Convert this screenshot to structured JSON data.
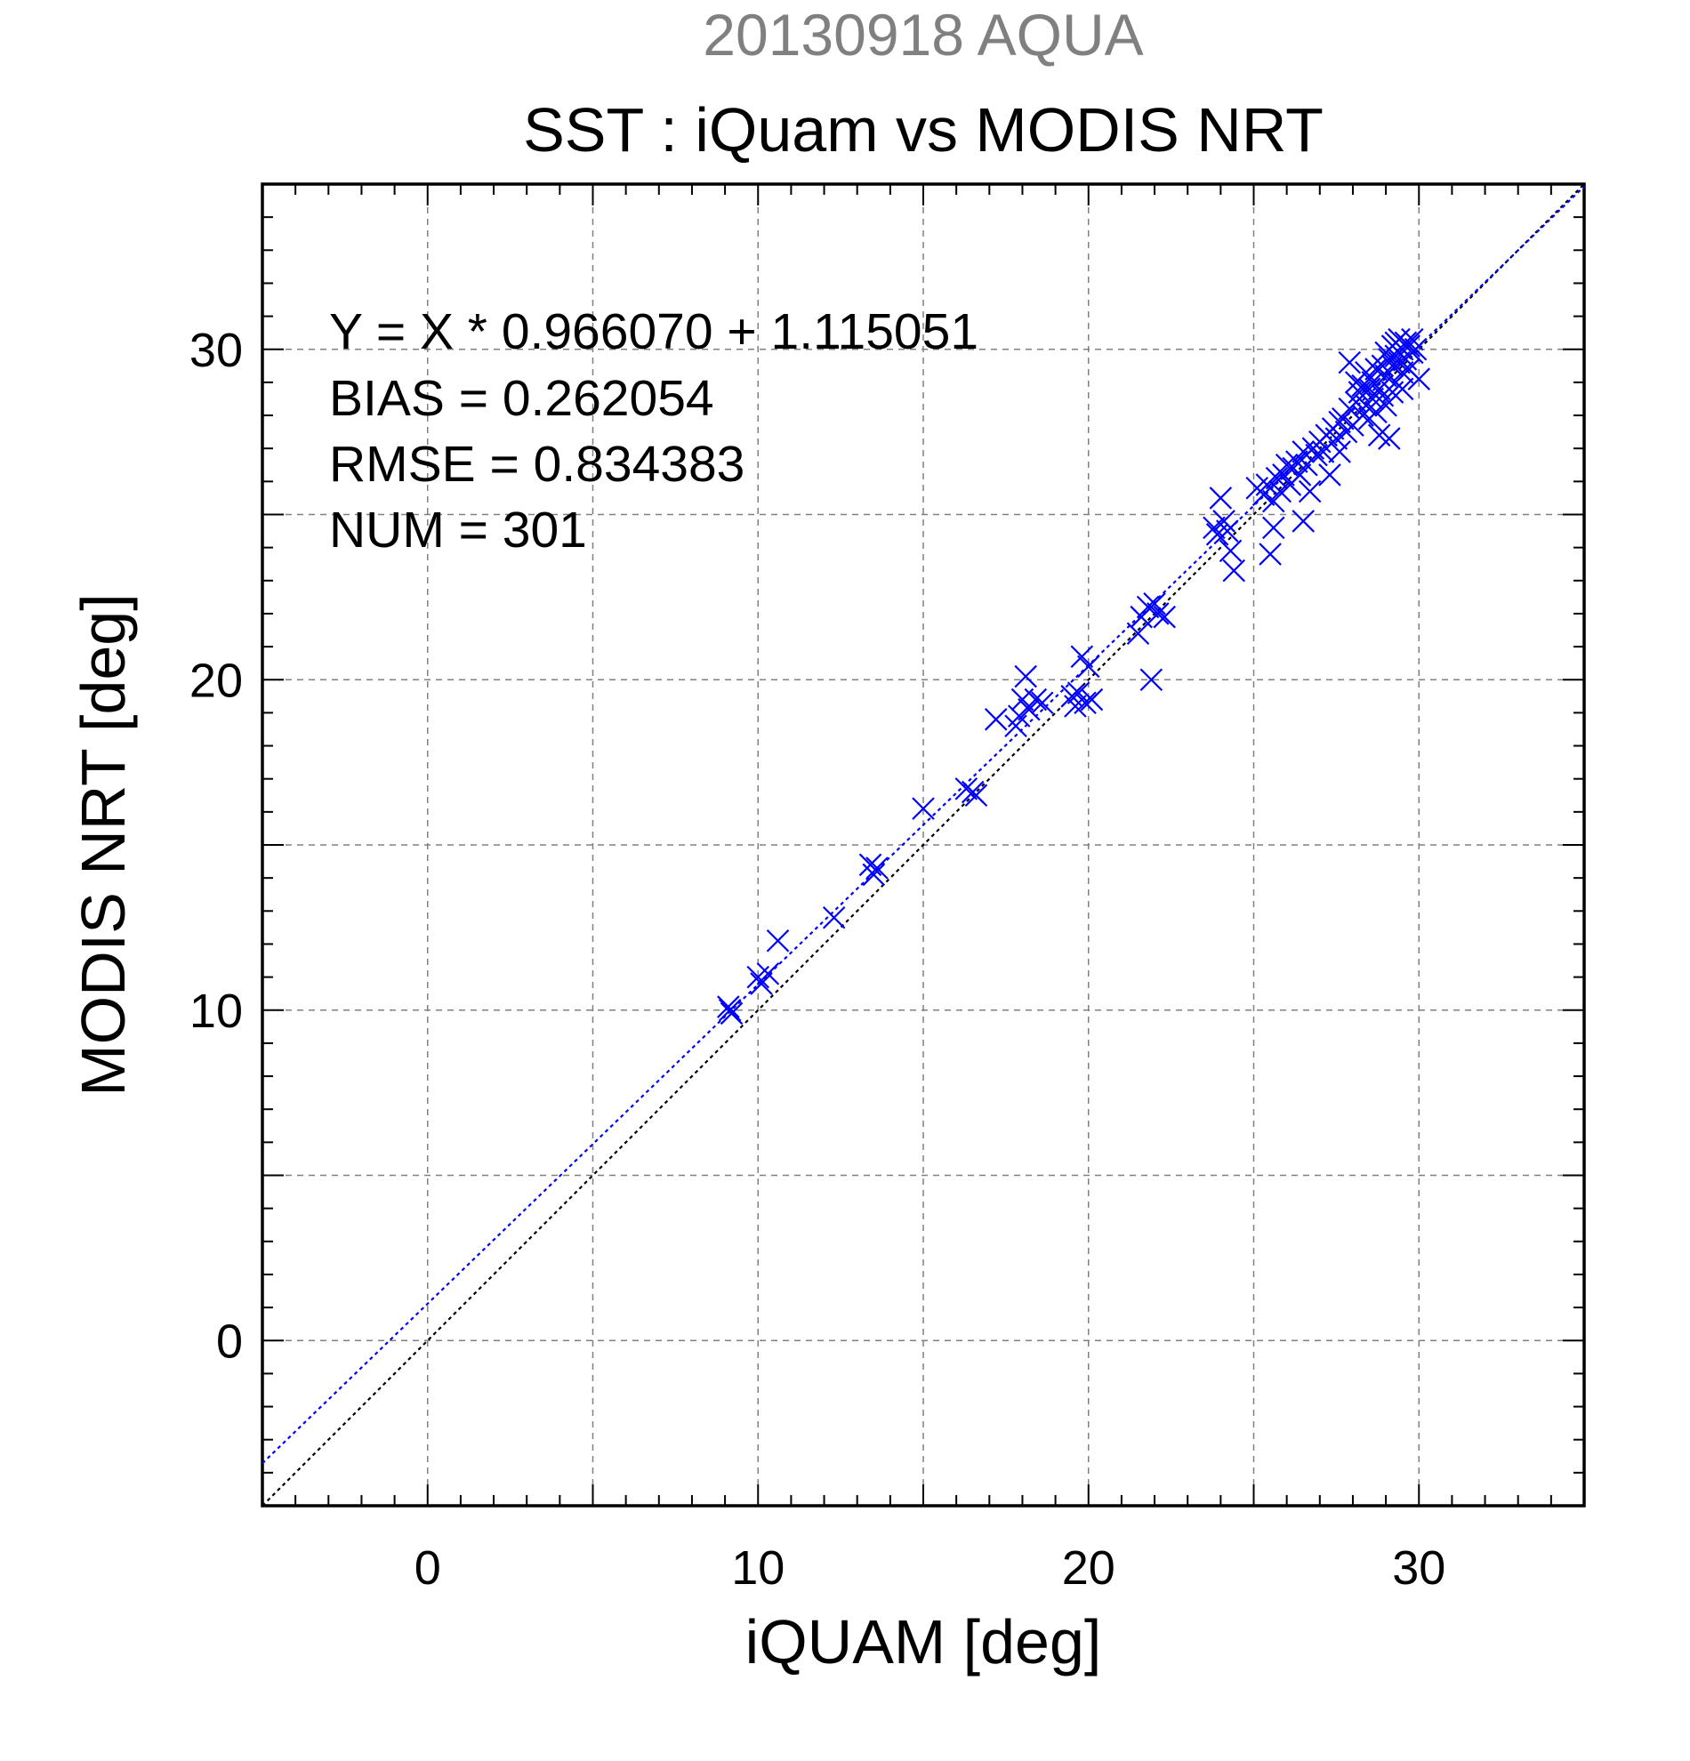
{
  "chart_data": {
    "type": "scatter",
    "supertitle": "20130918 AQUA",
    "title": "SST : iQuam vs MODIS NRT",
    "xlabel": "iQUAM [deg]",
    "ylabel": "MODIS NRT [deg]",
    "xlim": [
      -5,
      35
    ],
    "ylim": [
      -5,
      35
    ],
    "xticks": [
      0,
      10,
      20,
      30
    ],
    "yticks": [
      0,
      10,
      20,
      30
    ],
    "tick_labels_x": [
      "0",
      "10",
      "20",
      "30"
    ],
    "tick_labels_y": [
      "0",
      "10",
      "20",
      "30"
    ],
    "grid": true,
    "grid_step": 5,
    "annotations": [
      "Y = X * 0.966070 + 1.115051",
      "BIAS = 0.262054",
      "RMSE = 0.834383",
      "NUM = 301"
    ],
    "fit_line": {
      "slope": 0.96607,
      "intercept": 1.115051,
      "style": "dotted",
      "color": "#0000ff"
    },
    "identity_line": {
      "slope": 1,
      "intercept": 0,
      "style": "dotted",
      "color": "#000000"
    },
    "colors": {
      "points": "#0000ff",
      "supertitle": "#808080",
      "grid": "#808080",
      "axes": "#000000"
    },
    "points": [
      [
        9.1,
        10.1
      ],
      [
        9.2,
        9.9
      ],
      [
        9.15,
        10.0
      ],
      [
        10.0,
        11.0
      ],
      [
        10.1,
        10.8
      ],
      [
        10.3,
        11.1
      ],
      [
        10.6,
        12.1
      ],
      [
        12.3,
        12.8
      ],
      [
        13.4,
        14.4
      ],
      [
        13.5,
        14.1
      ],
      [
        13.6,
        14.3
      ],
      [
        15.0,
        16.1
      ],
      [
        16.3,
        16.7
      ],
      [
        16.5,
        16.6
      ],
      [
        16.6,
        16.5
      ],
      [
        17.2,
        18.8
      ],
      [
        17.8,
        18.6
      ],
      [
        17.9,
        18.9
      ],
      [
        18.0,
        19.4
      ],
      [
        18.1,
        20.1
      ],
      [
        18.2,
        19.1
      ],
      [
        18.4,
        19.4
      ],
      [
        18.6,
        19.3
      ],
      [
        19.5,
        19.5
      ],
      [
        19.6,
        19.2
      ],
      [
        19.7,
        19.6
      ],
      [
        19.8,
        20.7
      ],
      [
        19.9,
        19.3
      ],
      [
        20.0,
        20.4
      ],
      [
        20.1,
        19.4
      ],
      [
        21.5,
        21.4
      ],
      [
        21.6,
        21.9
      ],
      [
        21.8,
        22.2
      ],
      [
        21.9,
        20.0
      ],
      [
        22.0,
        22.3
      ],
      [
        22.1,
        22.0
      ],
      [
        22.3,
        21.9
      ],
      [
        23.8,
        24.6
      ],
      [
        23.9,
        24.4
      ],
      [
        24.0,
        25.5
      ],
      [
        24.1,
        24.8
      ],
      [
        24.2,
        24.5
      ],
      [
        24.3,
        23.9
      ],
      [
        24.4,
        23.3
      ],
      [
        25.1,
        25.8
      ],
      [
        25.3,
        25.6
      ],
      [
        25.4,
        25.9
      ],
      [
        25.5,
        23.8
      ],
      [
        25.6,
        25.4
      ],
      [
        25.6,
        24.6
      ],
      [
        25.7,
        26.1
      ],
      [
        25.8,
        25.7
      ],
      [
        25.9,
        26.2
      ],
      [
        26.0,
        26.5
      ],
      [
        26.1,
        25.9
      ],
      [
        26.2,
        26.4
      ],
      [
        26.3,
        26.6
      ],
      [
        26.4,
        26.2
      ],
      [
        26.5,
        26.9
      ],
      [
        26.5,
        24.8
      ],
      [
        26.6,
        26.5
      ],
      [
        26.7,
        25.7
      ],
      [
        26.8,
        27.0
      ],
      [
        26.9,
        26.8
      ],
      [
        27.0,
        27.2
      ],
      [
        27.1,
        26.9
      ],
      [
        27.2,
        27.4
      ],
      [
        27.3,
        26.2
      ],
      [
        27.4,
        27.6
      ],
      [
        27.5,
        27.3
      ],
      [
        27.6,
        27.8
      ],
      [
        27.6,
        26.9
      ],
      [
        27.7,
        27.9
      ],
      [
        27.8,
        27.5
      ],
      [
        27.9,
        28.2
      ],
      [
        27.9,
        29.6
      ],
      [
        28.0,
        27.7
      ],
      [
        28.1,
        28.4
      ],
      [
        28.1,
        29.0
      ],
      [
        28.2,
        28.7
      ],
      [
        28.3,
        28.0
      ],
      [
        28.3,
        28.9
      ],
      [
        28.4,
        28.3
      ],
      [
        28.4,
        29.3
      ],
      [
        28.5,
        28.8
      ],
      [
        28.5,
        27.9
      ],
      [
        28.6,
        29.0
      ],
      [
        28.6,
        28.5
      ],
      [
        28.7,
        29.4
      ],
      [
        28.7,
        28.1
      ],
      [
        28.8,
        28.8
      ],
      [
        28.8,
        27.4
      ],
      [
        28.9,
        29.5
      ],
      [
        28.9,
        28.6
      ],
      [
        29.0,
        29.9
      ],
      [
        29.0,
        29.2
      ],
      [
        29.0,
        28.3
      ],
      [
        29.1,
        29.7
      ],
      [
        29.1,
        27.3
      ],
      [
        29.2,
        30.1
      ],
      [
        29.2,
        29.5
      ],
      [
        29.2,
        28.7
      ],
      [
        29.3,
        30.2
      ],
      [
        29.3,
        29.8
      ],
      [
        29.3,
        29.0
      ],
      [
        29.4,
        30.3
      ],
      [
        29.4,
        29.6
      ],
      [
        29.5,
        30.0
      ],
      [
        29.5,
        29.3
      ],
      [
        29.5,
        28.8
      ],
      [
        29.6,
        30.2
      ],
      [
        29.6,
        29.7
      ],
      [
        29.7,
        30.1
      ],
      [
        29.7,
        29.4
      ],
      [
        29.8,
        30.3
      ],
      [
        29.8,
        29.9
      ],
      [
        29.9,
        30.0
      ],
      [
        30.0,
        29.1
      ]
    ]
  }
}
